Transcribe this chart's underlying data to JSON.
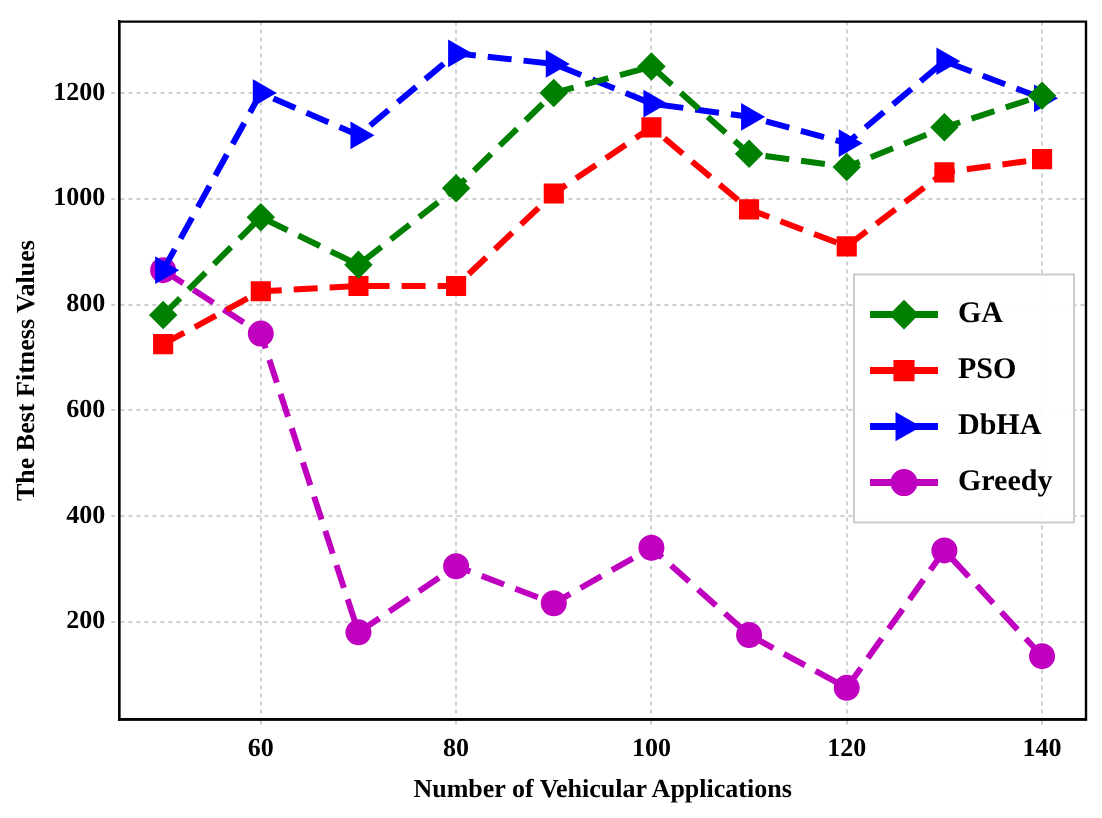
{
  "chart_data": {
    "type": "line",
    "xlabel": "Number of Vehicular Applications",
    "ylabel": "The Best Fitness Values",
    "x": [
      50,
      60,
      70,
      80,
      90,
      100,
      110,
      120,
      130,
      140
    ],
    "xlim": [
      45.5,
      144.5
    ],
    "xticks": [
      60,
      80,
      100,
      120,
      140
    ],
    "ylim": [
      15,
      1335
    ],
    "yticks": [
      200,
      400,
      600,
      800,
      1000,
      1200
    ],
    "grid": true,
    "legend": "right",
    "line_style": "dashed",
    "series": [
      {
        "name": "GA",
        "color": "#008000",
        "marker": "diamond",
        "values": [
          780,
          965,
          875,
          1020,
          1200,
          1250,
          1085,
          1060,
          1135,
          1195
        ]
      },
      {
        "name": "PSO",
        "color": "#ff0000",
        "marker": "square",
        "values": [
          725,
          825,
          835,
          835,
          1010,
          1135,
          980,
          910,
          1050,
          1075
        ]
      },
      {
        "name": "DbHA",
        "color": "#0000ff",
        "marker": "triangle",
        "values": [
          865,
          1200,
          1120,
          1275,
          1255,
          1180,
          1155,
          1105,
          1260,
          1190
        ]
      },
      {
        "name": "Greedy",
        "color": "#bf00bf",
        "marker": "circle",
        "values": [
          865,
          745,
          180,
          305,
          235,
          340,
          175,
          75,
          335,
          135
        ]
      }
    ]
  }
}
